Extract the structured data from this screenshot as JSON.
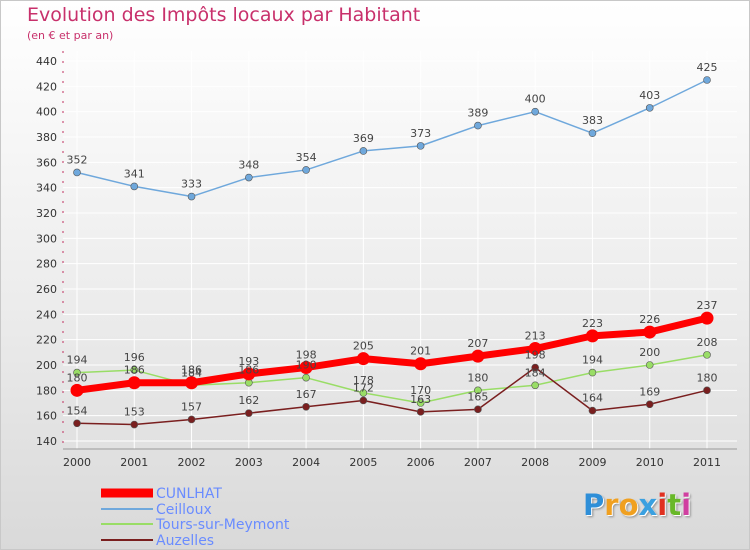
{
  "header": {
    "title": "Evolution des Impôts locaux par Habitant",
    "subtitle": "(en € et par an)"
  },
  "logo": {
    "text": "Proxiti",
    "letter_colors": [
      "#2f8fd8",
      "#f0a020",
      "#f0a020",
      "#3aa0e0",
      "#e03020",
      "#68b828",
      "#d040a0"
    ]
  },
  "chart_data": {
    "type": "line",
    "title": "Evolution des Impôts locaux par Habitant",
    "subtitle": "(en € et par an)",
    "x": [
      "2000",
      "2001",
      "2002",
      "2003",
      "2004",
      "2005",
      "2006",
      "2007",
      "2008",
      "2009",
      "2010",
      "2011"
    ],
    "ylim": [
      140,
      440
    ],
    "yticks": [
      140,
      160,
      180,
      200,
      220,
      240,
      260,
      280,
      300,
      320,
      340,
      360,
      380,
      400,
      420,
      440
    ],
    "grid": true,
    "legend_position": "bottom-left",
    "series": [
      {
        "name": "CUNLHAT",
        "color": "#ff0000",
        "values": [
          180,
          186,
          186,
          193,
          198,
          205,
          201,
          207,
          213,
          223,
          226,
          237
        ]
      },
      {
        "name": "Ceilloux",
        "color": "#6fa8dc",
        "values": [
          352,
          341,
          333,
          348,
          354,
          369,
          373,
          389,
          400,
          383,
          403,
          425
        ]
      },
      {
        "name": "Tours-sur-Meymont",
        "color": "#99dd66",
        "values": [
          194,
          196,
          184,
          186,
          190,
          178,
          170,
          180,
          184,
          194,
          200,
          208
        ]
      },
      {
        "name": "Auzelles",
        "color": "#7a1f1f",
        "values": [
          154,
          153,
          157,
          162,
          167,
          172,
          163,
          165,
          198,
          164,
          169,
          180
        ]
      }
    ]
  }
}
